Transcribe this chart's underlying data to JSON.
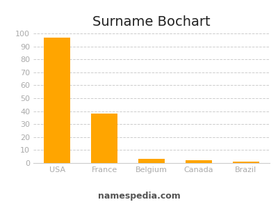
{
  "title": "Surname Bochart",
  "categories": [
    "USA",
    "France",
    "Belgium",
    "Canada",
    "Brazil"
  ],
  "values": [
    97,
    38,
    3,
    2,
    1
  ],
  "bar_color": "#FFA500",
  "background_color": "#ffffff",
  "ylim": [
    0,
    100
  ],
  "yticks": [
    0,
    10,
    20,
    30,
    40,
    50,
    60,
    70,
    80,
    90,
    100
  ],
  "grid_color": "#cccccc",
  "title_fontsize": 14,
  "tick_fontsize": 8,
  "tick_color": "#aaaaaa",
  "footer_text": "namespedia.com",
  "footer_fontsize": 9,
  "footer_color": "#555555"
}
